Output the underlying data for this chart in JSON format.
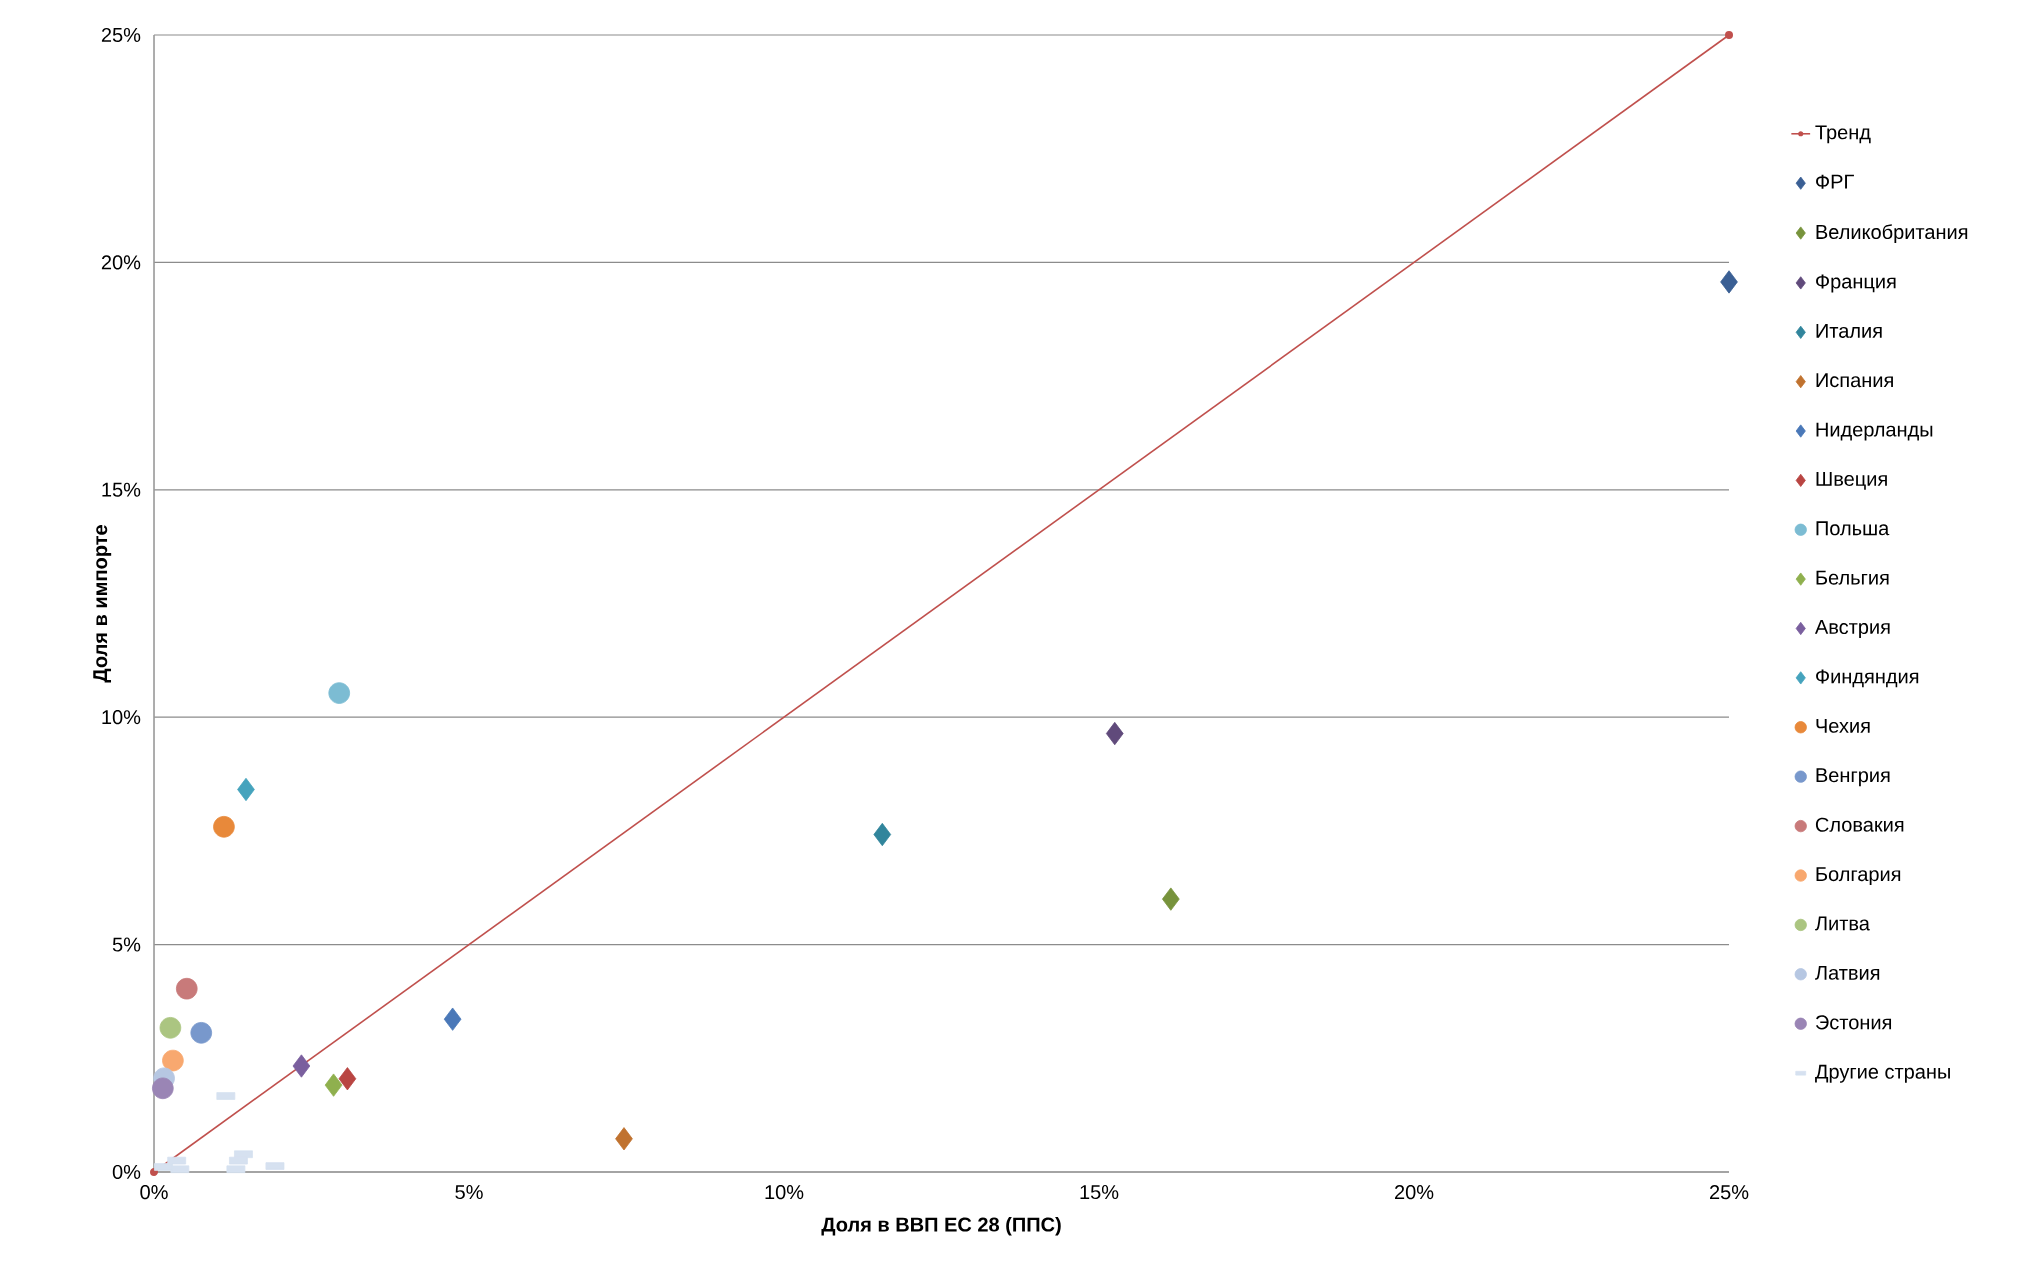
{
  "chart_data": {
    "type": "scatter",
    "xlabel": "Доля в ВВП ЕС 28 (ППС)",
    "ylabel": "Доля в импорте",
    "xlim": [
      0,
      25
    ],
    "ylim": [
      0,
      25
    ],
    "xticks": [
      {
        "value": 0,
        "label": "0%"
      },
      {
        "value": 5,
        "label": "5%"
      },
      {
        "value": 10,
        "label": "10%"
      },
      {
        "value": 15,
        "label": "15%"
      },
      {
        "value": 20,
        "label": "20%"
      },
      {
        "value": 25,
        "label": "25%"
      }
    ],
    "yticks": [
      {
        "value": 0,
        "label": "0%"
      },
      {
        "value": 5,
        "label": "5%"
      },
      {
        "value": 10,
        "label": "10%"
      },
      {
        "value": 15,
        "label": "15%"
      },
      {
        "value": 20,
        "label": "20%"
      },
      {
        "value": 25,
        "label": "25%"
      }
    ],
    "grid": "y",
    "legend": "right",
    "series": [
      {
        "name": "Тренд",
        "type": "line",
        "marker": "circle",
        "color": "#c0504d",
        "x": [
          0,
          25
        ],
        "values": [
          0,
          25
        ]
      },
      {
        "name": "ФРГ",
        "marker": "diamond",
        "color": "#3a5f94",
        "x": [
          25.0
        ],
        "values": [
          19.57
        ]
      },
      {
        "name": "Великобритания",
        "marker": "diamond",
        "color": "#77933c",
        "x": [
          16.14
        ],
        "values": [
          6.0
        ]
      },
      {
        "name": "Франция",
        "marker": "diamond",
        "color": "#604a7b",
        "x": [
          15.25
        ],
        "values": [
          9.64
        ]
      },
      {
        "name": "Италия",
        "marker": "diamond",
        "color": "#31859c",
        "x": [
          11.56
        ],
        "values": [
          7.42
        ]
      },
      {
        "name": "Испания",
        "marker": "diamond",
        "color": "#c0722f",
        "x": [
          7.46
        ],
        "values": [
          0.73
        ]
      },
      {
        "name": "Нидерланды",
        "marker": "diamond",
        "color": "#4a78b8",
        "x": [
          4.74
        ],
        "values": [
          3.36
        ]
      },
      {
        "name": "Швеция",
        "marker": "diamond",
        "color": "#b94542",
        "x": [
          3.07
        ],
        "values": [
          2.05
        ]
      },
      {
        "name": "Польша",
        "marker": "circle",
        "color": "#7cbcd3",
        "x": [
          2.94
        ],
        "values": [
          10.53
        ]
      },
      {
        "name": "Бельгия",
        "marker": "diamond",
        "color": "#8fb04e",
        "x": [
          2.85
        ],
        "values": [
          1.91
        ]
      },
      {
        "name": "Австрия",
        "marker": "diamond",
        "color": "#7a5f9e",
        "x": [
          2.34
        ],
        "values": [
          2.33
        ]
      },
      {
        "name": "Финдяндия",
        "marker": "diamond",
        "color": "#45a3bd",
        "x": [
          1.46
        ],
        "values": [
          8.41
        ]
      },
      {
        "name": "Чехия",
        "marker": "circle",
        "color": "#e8893a",
        "x": [
          1.11
        ],
        "values": [
          7.59
        ]
      },
      {
        "name": "Венгрия",
        "marker": "circle",
        "color": "#7898cc",
        "x": [
          0.75
        ],
        "values": [
          3.06
        ]
      },
      {
        "name": "Словакия",
        "marker": "circle",
        "color": "#c87a7a",
        "x": [
          0.52
        ],
        "values": [
          4.03
        ]
      },
      {
        "name": "Болгария",
        "marker": "circle",
        "color": "#f8a86f",
        "x": [
          0.3
        ],
        "values": [
          2.45
        ]
      },
      {
        "name": "Литва",
        "marker": "circle",
        "color": "#abc581",
        "x": [
          0.26
        ],
        "values": [
          3.17
        ]
      },
      {
        "name": "Латвия",
        "marker": "circle",
        "color": "#b6c7e2",
        "x": [
          0.16
        ],
        "values": [
          2.06
        ]
      },
      {
        "name": "Эстония",
        "marker": "circle",
        "color": "#9a85b5",
        "x": [
          0.14
        ],
        "values": [
          1.84
        ]
      },
      {
        "name": "Другие страны",
        "marker": "square",
        "color": "#d6e1f0",
        "x": [
          1.14,
          1.42,
          1.34,
          1.3,
          1.92,
          0.36,
          0.41,
          0.15
        ],
        "values": [
          1.67,
          0.39,
          0.25,
          0.06,
          0.13,
          0.25,
          0.06,
          0.11
        ]
      }
    ]
  }
}
